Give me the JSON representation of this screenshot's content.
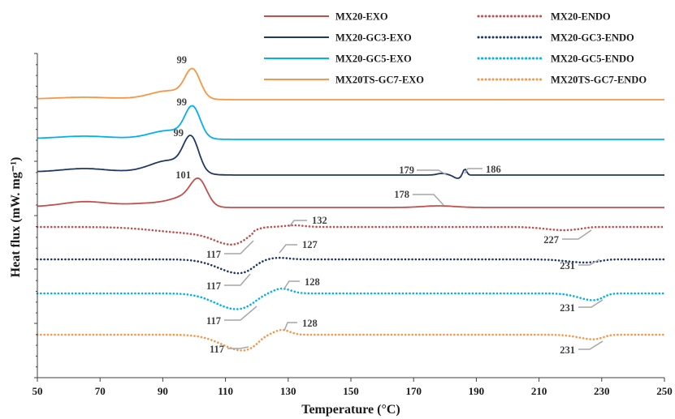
{
  "chart_data": {
    "type": "line",
    "xlabel": "Temperature (°C)",
    "ylabel": "Heat flux (mW. mg⁻¹)",
    "xlim": [
      50,
      250
    ],
    "xticks": [
      "50",
      "70",
      "90",
      "110",
      "130",
      "150",
      "170",
      "190",
      "210",
      "230",
      "250"
    ],
    "y_tick_labels": false,
    "legend_position": "top-right",
    "colors": {
      "red": "#c0504d",
      "navy": "#1f3864",
      "cyan": "#00b0f0",
      "orange": "#f79646",
      "leader": "#a6a6a6"
    },
    "series": [
      {
        "name": "MX20-EXO",
        "color": "#c0504d",
        "dash": "solid",
        "peak_x": 101
      },
      {
        "name": "MX20-ENDO",
        "color": "#c0504d",
        "dash": "dotted"
      },
      {
        "name": "MX20-GC3-EXO",
        "color": "#1f3864",
        "dash": "solid",
        "peak_x": 99
      },
      {
        "name": "MX20-GC3-ENDO",
        "color": "#1f3864",
        "dash": "dotted"
      },
      {
        "name": "MX20-GC5-EXO",
        "color": "#00b0f0",
        "dash": "solid",
        "peak_x": 99
      },
      {
        "name": "MX20-GC5-ENDO",
        "color": "#00b0f0",
        "dash": "dotted"
      },
      {
        "name": "MX20TS-GC7-EXO",
        "color": "#f79646",
        "dash": "solid",
        "peak_x": 99
      },
      {
        "name": "MX20TS-GC7-ENDO",
        "color": "#f79646",
        "dash": "dotted"
      }
    ],
    "annotations": [
      {
        "text": "99"
      },
      {
        "text": "99"
      },
      {
        "text": "99"
      },
      {
        "text": "101"
      },
      {
        "text": "179"
      },
      {
        "text": "186"
      },
      {
        "text": "178"
      },
      {
        "text": "132"
      },
      {
        "text": "117"
      },
      {
        "text": "227"
      },
      {
        "text": "127"
      },
      {
        "text": "117"
      },
      {
        "text": "231"
      },
      {
        "text": "128"
      },
      {
        "text": "117"
      },
      {
        "text": "231"
      },
      {
        "text": "128"
      },
      {
        "text": "117"
      },
      {
        "text": "231"
      }
    ]
  }
}
